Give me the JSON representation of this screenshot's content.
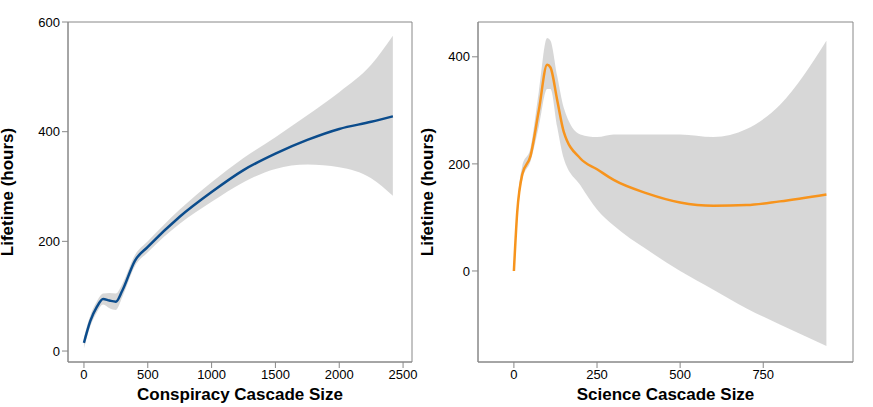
{
  "chart_data": [
    {
      "type": "line",
      "x_label": "Conspiracy Cascade Size",
      "y_label": "Lifetime (hours)",
      "x": [
        0,
        50,
        100,
        150,
        200,
        250,
        300,
        400,
        500,
        750,
        1000,
        1250,
        1500,
        1750,
        2000,
        2250,
        2420
      ],
      "values": [
        15,
        55,
        80,
        95,
        92,
        90,
        110,
        165,
        190,
        245,
        290,
        330,
        360,
        385,
        405,
        418,
        428
      ],
      "lower": [
        5,
        45,
        70,
        85,
        78,
        75,
        98,
        155,
        180,
        232,
        272,
        308,
        332,
        340,
        335,
        315,
        283
      ],
      "upper": [
        25,
        65,
        90,
        105,
        106,
        105,
        122,
        175,
        200,
        258,
        308,
        352,
        390,
        430,
        472,
        522,
        575
      ],
      "color": "#0b4c8c",
      "xlim": [
        -125,
        2570
      ],
      "ylim": [
        -20,
        600
      ],
      "xticks": [
        0,
        500,
        1000,
        1500,
        2000,
        2500
      ],
      "yticks": [
        0,
        200,
        400,
        600
      ],
      "grid": false
    },
    {
      "type": "line",
      "x_label": "Science Cascade Size",
      "y_label": "Lifetime (hours)",
      "x": [
        0,
        10,
        25,
        50,
        75,
        100,
        110,
        130,
        150,
        200,
        250,
        300,
        400,
        500,
        600,
        700,
        800,
        940
      ],
      "values": [
        0,
        110,
        180,
        215,
        300,
        385,
        380,
        320,
        260,
        210,
        190,
        170,
        145,
        128,
        122,
        123,
        130,
        143
      ],
      "lower": [
        -5,
        100,
        170,
        205,
        270,
        340,
        340,
        270,
        210,
        160,
        115,
        85,
        40,
        0,
        -35,
        -70,
        -100,
        -140
      ],
      "upper": [
        5,
        120,
        195,
        230,
        335,
        435,
        430,
        365,
        305,
        255,
        250,
        255,
        255,
        255,
        250,
        265,
        310,
        430
      ],
      "color": "#f7941d",
      "xlim": [
        -108,
        1020
      ],
      "ylim": [
        -170,
        465
      ],
      "xticks": [
        0,
        250,
        500,
        750
      ],
      "yticks": [
        0,
        200,
        400
      ],
      "grid": false
    }
  ]
}
